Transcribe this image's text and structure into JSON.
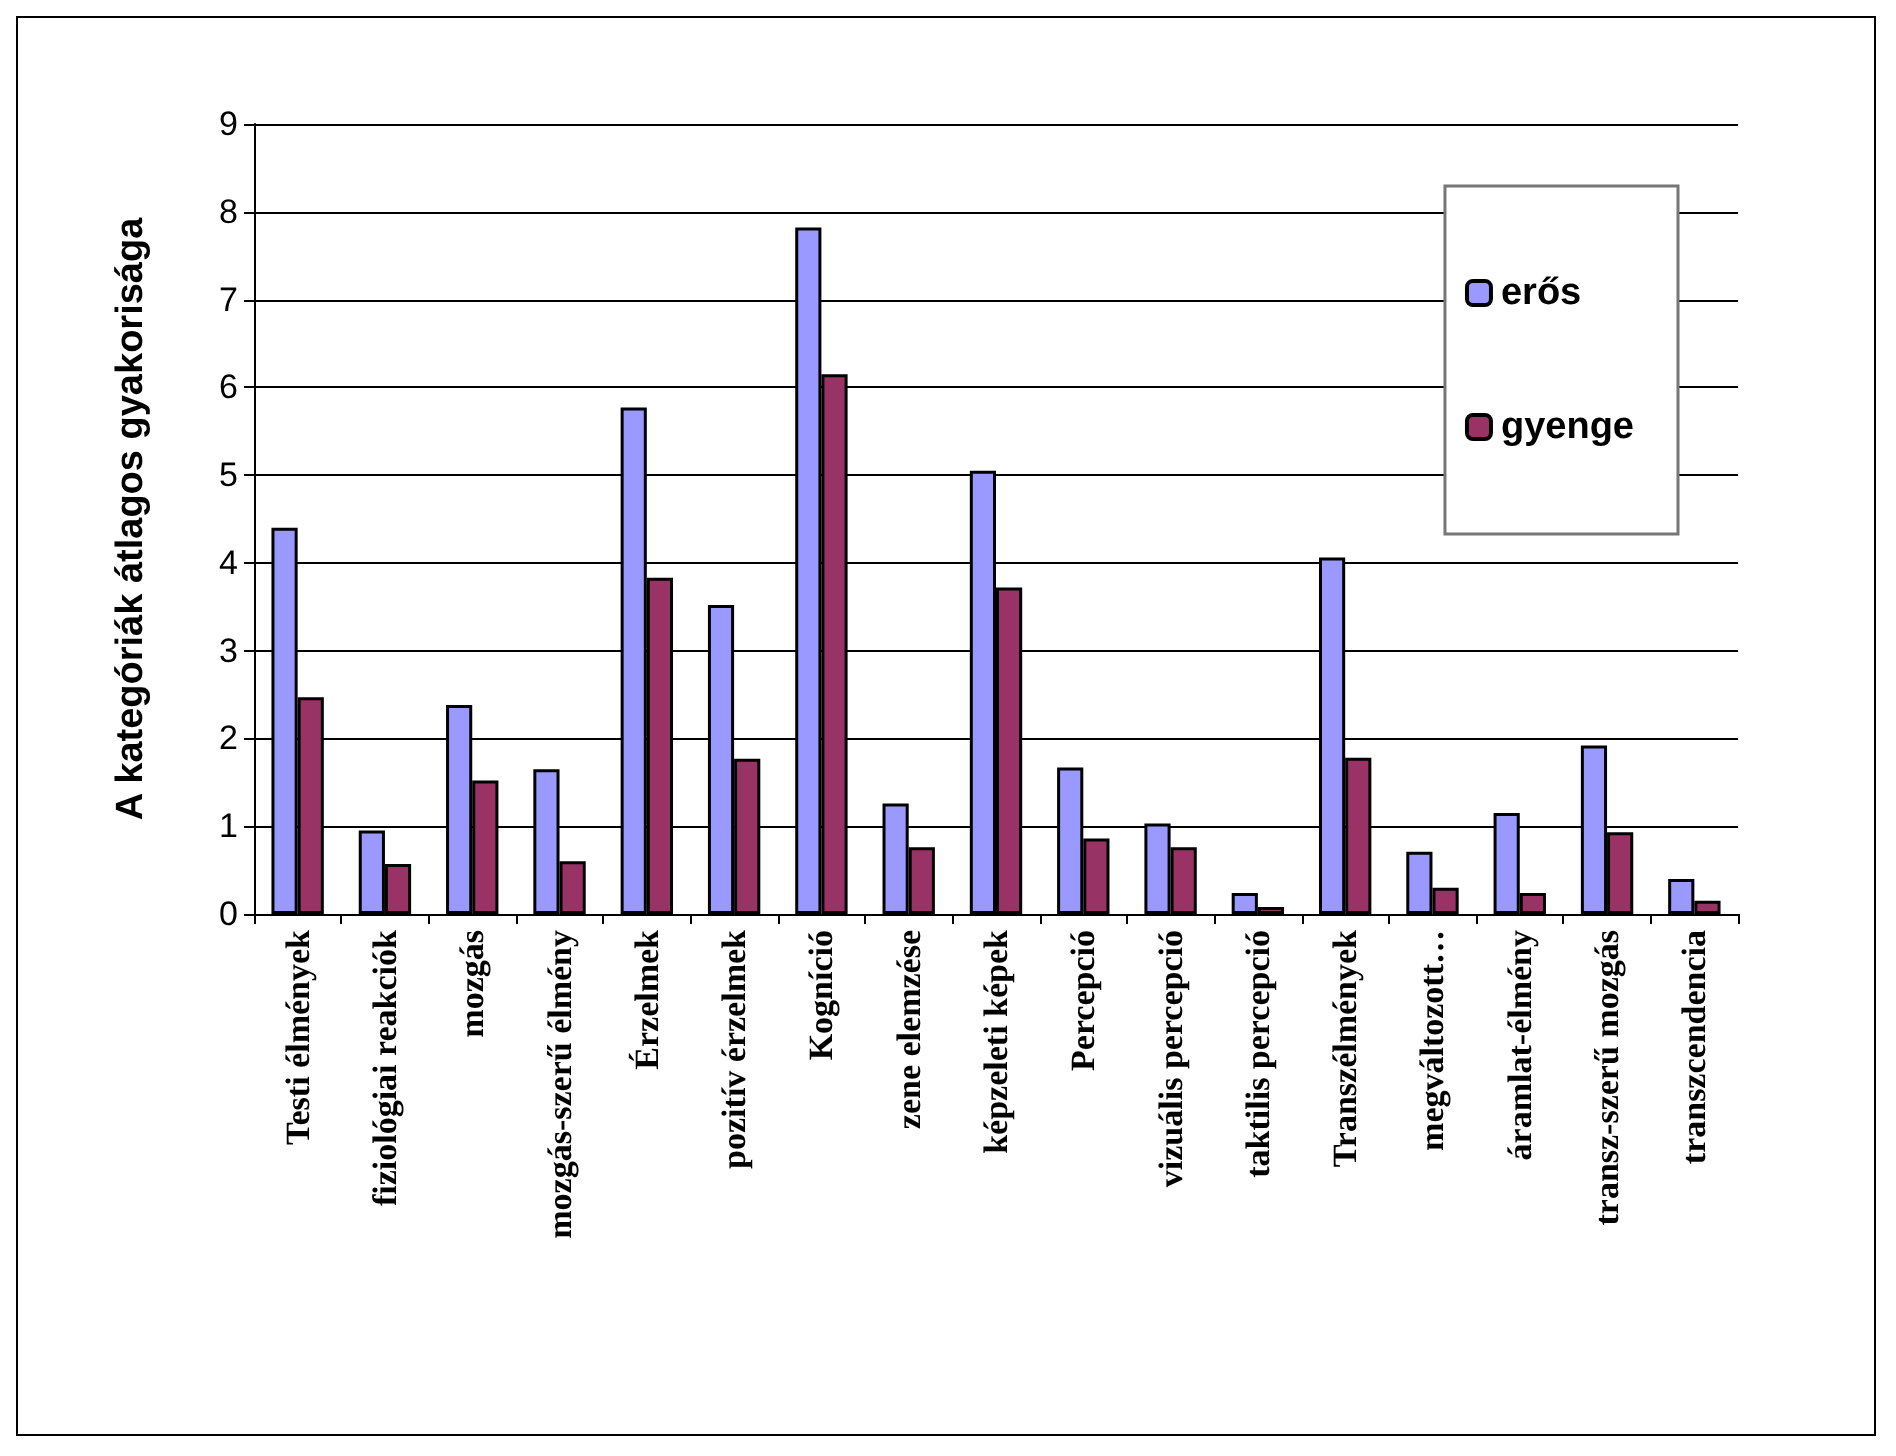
{
  "chart_data": {
    "type": "bar",
    "ylabel": "A kategóriák átlagos gyakorisága",
    "categories": [
      "Testi élmények",
      "fiziológiai reakciók",
      "mozgás",
      "mozgás-szerű élmény",
      "Érzelmek",
      "pozitív érzelmek",
      "Kogníció",
      "zene elemzése",
      "képzeleti képek",
      "Percepció",
      "vizuális percepció",
      "taktilis percepció",
      "Transzélmények",
      "megváltozott…",
      "áramlat-élmény",
      "transz-szerű mozgás",
      "transzcendencia"
    ],
    "series": [
      {
        "name": "erős",
        "color": "#9999ff",
        "values": [
          4.4,
          0.95,
          2.38,
          1.65,
          5.77,
          3.52,
          7.82,
          1.26,
          5.05,
          1.67,
          1.03,
          0.24,
          4.06,
          0.71,
          1.15,
          1.92,
          0.4
        ]
      },
      {
        "name": "gyenge",
        "color": "#993366",
        "values": [
          2.47,
          0.57,
          1.52,
          0.6,
          3.83,
          1.77,
          6.15,
          0.76,
          3.72,
          0.86,
          0.76,
          0.08,
          1.78,
          0.3,
          0.24,
          0.93,
          0.15
        ]
      }
    ],
    "ylim": [
      0,
      9
    ],
    "yticks": [
      0,
      1,
      2,
      3,
      4,
      5,
      6,
      7,
      8,
      9
    ],
    "grid": "y",
    "legend": "top right"
  }
}
